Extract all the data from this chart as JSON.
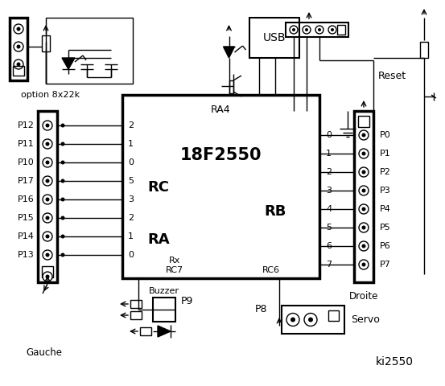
{
  "bg_color": "#ffffff",
  "chip_label": "18F2550",
  "chip_sub": "RA4",
  "rc_label": "RC",
  "ra_label": "RA",
  "rb_label": "RB",
  "left_pins": [
    "P12",
    "P11",
    "P10",
    "P17",
    "P16",
    "P15",
    "P14",
    "P13"
  ],
  "right_pins": [
    "P0",
    "P1",
    "P2",
    "P3",
    "P4",
    "P5",
    "P6",
    "P7"
  ],
  "rc_pin_labels": [
    "2",
    "1",
    "0"
  ],
  "ra_pin_labels": [
    "5",
    "3",
    "2",
    "1",
    "0"
  ],
  "rb_pin_labels": [
    "0",
    "1",
    "2",
    "3",
    "4",
    "5",
    "6",
    "7"
  ],
  "rc7_label": "RC7",
  "rx_label": "Rx",
  "rc6_label": "RC6",
  "usb_label": "USB",
  "reset_label": "Reset",
  "gauche_label": "Gauche",
  "droite_label": "Droite",
  "servo_label": "Servo",
  "buzzer_label": "Buzzer",
  "p8_label": "P8",
  "p9_label": "P9",
  "option_label": "option 8x22k",
  "ki_label": "ki2550",
  "figsize": [
    5.53,
    4.8
  ],
  "dpi": 100
}
